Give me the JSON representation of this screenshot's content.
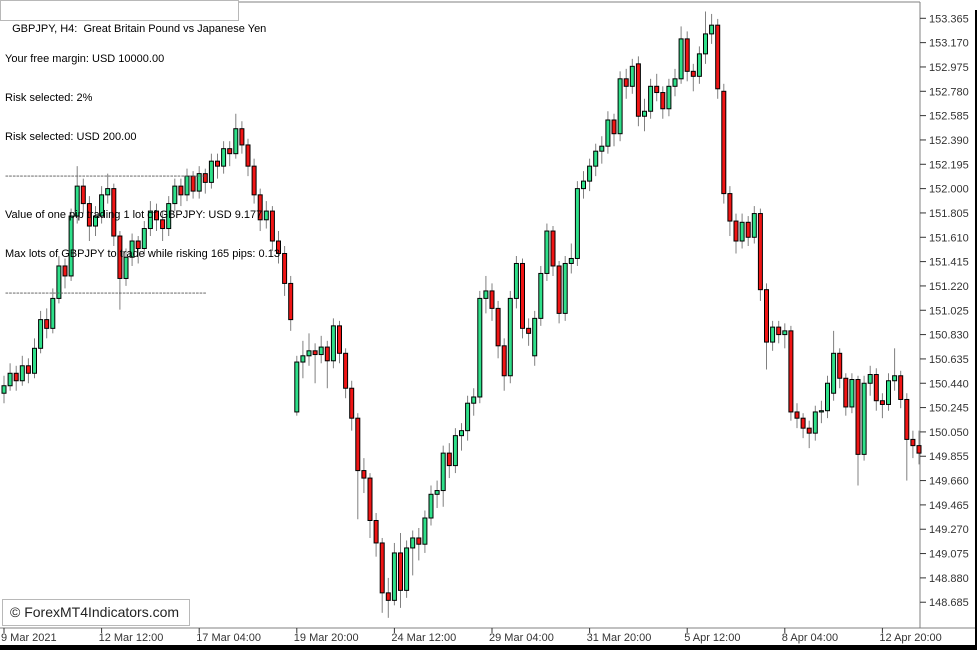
{
  "window": {
    "title_box": "GBPJPY, H4:  Great Britain Pound vs Japanese Yen",
    "watermark": "© ForexMT4Indicators.com"
  },
  "info_panel": {
    "lines": [
      "Your free margin: USD 10000.00",
      "Risk selected: 2%",
      "Risk selected: USD 200.00",
      "-------------------------------------------------------",
      "Value of one pip trading 1 lot of GBPJPY: USD 9.177",
      "Max lots of GBPJPY to trade while risking 165 pips: 0.13",
      "-------------------------------------------------------"
    ]
  },
  "chart_data": {
    "type": "candlestick",
    "symbol": "GBPJPY",
    "timeframe": "H4",
    "title": "GBPJPY, H4:  Great Britain Pound vs Japanese Yen",
    "grid": false,
    "legend_position": "none",
    "price_axis": {
      "side": "right",
      "max": 153.365,
      "min": 148.685,
      "step": 0.195,
      "labels": [
        "153.365",
        "153.170",
        "152.975",
        "152.780",
        "152.585",
        "152.390",
        "152.195",
        "152.000",
        "151.805",
        "151.610",
        "151.415",
        "151.220",
        "151.025",
        "150.830",
        "150.635",
        "150.440",
        "150.245",
        "150.050",
        "149.855",
        "149.660",
        "149.465",
        "149.270",
        "149.075",
        "148.880",
        "148.685"
      ]
    },
    "time_axis": {
      "labels": [
        {
          "bar": 0,
          "text": "9 Mar 2021"
        },
        {
          "bar": 16,
          "text": "12 Mar 12:00"
        },
        {
          "bar": 32,
          "text": "17 Mar 04:00"
        },
        {
          "bar": 48,
          "text": "19 Mar 20:00"
        },
        {
          "bar": 64,
          "text": "24 Mar 12:00"
        },
        {
          "bar": 80,
          "text": "29 Mar 04:00"
        },
        {
          "bar": 96,
          "text": "31 Mar 20:00"
        },
        {
          "bar": 112,
          "text": "5 Apr 12:00"
        },
        {
          "bar": 128,
          "text": "8 Apr 04:00"
        },
        {
          "bar": 144,
          "text": "12 Apr 20:00"
        }
      ]
    },
    "colors": {
      "background": "#FFFFFF",
      "bull": "#2FE08A",
      "bear": "#F01515",
      "outline": "#000000",
      "wick": "#808080",
      "axis": "#808080",
      "label_text": "#333333"
    },
    "candles": [
      [
        150.36,
        150.5,
        150.28,
        150.42
      ],
      [
        150.42,
        150.6,
        150.38,
        150.52
      ],
      [
        150.52,
        150.58,
        150.38,
        150.46
      ],
      [
        150.46,
        150.66,
        150.42,
        150.58
      ],
      [
        150.58,
        150.64,
        150.44,
        150.52
      ],
      [
        150.52,
        150.8,
        150.48,
        150.72
      ],
      [
        150.72,
        151.02,
        150.68,
        150.95
      ],
      [
        150.95,
        151.04,
        150.8,
        150.88
      ],
      [
        150.88,
        151.2,
        150.84,
        151.12
      ],
      [
        151.12,
        151.46,
        151.08,
        151.38
      ],
      [
        151.38,
        151.44,
        151.2,
        151.3
      ],
      [
        151.3,
        151.84,
        151.26,
        151.78
      ],
      [
        151.78,
        152.18,
        151.72,
        152.02
      ],
      [
        152.02,
        152.08,
        151.8,
        151.88
      ],
      [
        151.88,
        151.94,
        151.58,
        151.7
      ],
      [
        151.7,
        151.86,
        151.62,
        151.78
      ],
      [
        151.78,
        152.02,
        151.72,
        151.95
      ],
      [
        151.95,
        152.12,
        151.88,
        152.0
      ],
      [
        152.0,
        152.04,
        151.54,
        151.62
      ],
      [
        151.62,
        151.66,
        151.03,
        151.28
      ],
      [
        151.28,
        151.52,
        151.22,
        151.45
      ],
      [
        151.45,
        151.64,
        151.38,
        151.58
      ],
      [
        151.58,
        151.62,
        151.4,
        151.52
      ],
      [
        151.52,
        151.74,
        151.46,
        151.68
      ],
      [
        151.68,
        151.9,
        151.62,
        151.82
      ],
      [
        151.82,
        151.88,
        151.66,
        151.75
      ],
      [
        151.75,
        151.82,
        151.58,
        151.68
      ],
      [
        151.68,
        151.94,
        151.62,
        151.88
      ],
      [
        151.88,
        152.08,
        151.82,
        152.02
      ],
      [
        152.02,
        152.08,
        151.86,
        151.95
      ],
      [
        151.95,
        152.16,
        151.9,
        152.1
      ],
      [
        152.1,
        152.14,
        151.92,
        151.98
      ],
      [
        151.98,
        152.18,
        151.92,
        152.12
      ],
      [
        152.12,
        152.16,
        151.96,
        152.05
      ],
      [
        152.05,
        152.28,
        152.0,
        152.22
      ],
      [
        152.22,
        152.28,
        152.08,
        152.18
      ],
      [
        152.18,
        152.38,
        152.12,
        152.32
      ],
      [
        152.32,
        152.38,
        152.18,
        152.28
      ],
      [
        152.28,
        152.6,
        152.24,
        152.48
      ],
      [
        152.48,
        152.54,
        152.28,
        152.35
      ],
      [
        152.35,
        152.4,
        152.1,
        152.18
      ],
      [
        152.18,
        152.24,
        151.88,
        151.95
      ],
      [
        151.95,
        152.0,
        151.66,
        151.75
      ],
      [
        151.75,
        151.9,
        151.68,
        151.82
      ],
      [
        151.82,
        151.86,
        151.5,
        151.58
      ],
      [
        151.58,
        151.66,
        151.4,
        151.48
      ],
      [
        151.48,
        151.54,
        151.14,
        151.24
      ],
      [
        151.24,
        151.3,
        150.86,
        150.95
      ],
      [
        150.21,
        150.66,
        150.18,
        150.61
      ],
      [
        150.61,
        150.78,
        150.48,
        150.66
      ],
      [
        150.66,
        150.84,
        150.58,
        150.7
      ],
      [
        150.7,
        150.76,
        150.44,
        150.67
      ],
      [
        150.67,
        150.82,
        150.6,
        150.73
      ],
      [
        150.73,
        150.78,
        150.4,
        150.62
      ],
      [
        150.62,
        150.96,
        150.56,
        150.9
      ],
      [
        150.9,
        150.94,
        150.6,
        150.68
      ],
      [
        150.68,
        150.72,
        150.32,
        150.4
      ],
      [
        150.4,
        150.46,
        150.06,
        150.16
      ],
      [
        150.16,
        150.2,
        149.35,
        149.74
      ],
      [
        149.74,
        149.84,
        149.56,
        149.68
      ],
      [
        149.68,
        149.72,
        149.2,
        149.34
      ],
      [
        149.34,
        149.4,
        149.05,
        149.16
      ],
      [
        149.16,
        149.2,
        148.6,
        148.76
      ],
      [
        148.76,
        148.88,
        148.56,
        148.7
      ],
      [
        148.7,
        149.16,
        148.66,
        149.08
      ],
      [
        149.08,
        149.24,
        148.64,
        148.78
      ],
      [
        148.78,
        149.18,
        148.72,
        149.12
      ],
      [
        149.12,
        149.26,
        148.9,
        149.2
      ],
      [
        149.2,
        149.28,
        149.02,
        149.15
      ],
      [
        149.15,
        149.42,
        149.08,
        149.36
      ],
      [
        149.36,
        149.62,
        149.3,
        149.55
      ],
      [
        149.55,
        149.66,
        149.44,
        149.58
      ],
      [
        149.58,
        149.94,
        149.45,
        149.88
      ],
      [
        149.88,
        149.96,
        149.68,
        149.78
      ],
      [
        149.78,
        150.08,
        149.72,
        150.02
      ],
      [
        150.02,
        150.12,
        149.9,
        150.06
      ],
      [
        150.06,
        150.34,
        149.98,
        150.28
      ],
      [
        150.28,
        150.4,
        150.18,
        150.33
      ],
      [
        150.33,
        151.18,
        150.28,
        151.12
      ],
      [
        151.12,
        151.3,
        151.0,
        151.18
      ],
      [
        151.18,
        151.24,
        150.94,
        151.04
      ],
      [
        151.04,
        151.1,
        150.64,
        150.74
      ],
      [
        150.74,
        150.8,
        150.38,
        150.5
      ],
      [
        150.5,
        151.18,
        150.44,
        151.12
      ],
      [
        151.12,
        151.46,
        151.04,
        151.4
      ],
      [
        151.4,
        151.44,
        150.8,
        150.88
      ],
      [
        150.88,
        150.96,
        150.74,
        150.84
      ],
      [
        150.66,
        151.02,
        150.58,
        150.96
      ],
      [
        150.96,
        151.38,
        150.9,
        151.32
      ],
      [
        151.32,
        151.72,
        151.26,
        151.66
      ],
      [
        151.66,
        151.7,
        151.3,
        151.38
      ],
      [
        151.38,
        151.42,
        150.92,
        151.0
      ],
      [
        151.0,
        151.46,
        150.94,
        151.4
      ],
      [
        151.4,
        151.56,
        151.32,
        151.44
      ],
      [
        151.44,
        152.06,
        151.38,
        152.0
      ],
      [
        152.0,
        152.14,
        151.92,
        152.06
      ],
      [
        152.06,
        152.24,
        151.98,
        152.18
      ],
      [
        152.18,
        152.36,
        152.1,
        152.3
      ],
      [
        152.3,
        152.42,
        152.2,
        152.34
      ],
      [
        152.34,
        152.62,
        152.28,
        152.55
      ],
      [
        152.55,
        152.6,
        152.34,
        152.44
      ],
      [
        152.44,
        152.94,
        152.38,
        152.88
      ],
      [
        152.88,
        152.96,
        152.72,
        152.82
      ],
      [
        152.82,
        153.04,
        152.76,
        152.98
      ],
      [
        153.0,
        153.06,
        152.5,
        152.58
      ],
      [
        152.58,
        152.72,
        152.46,
        152.62
      ],
      [
        152.62,
        152.88,
        152.56,
        152.82
      ],
      [
        152.82,
        152.92,
        152.7,
        152.77
      ],
      [
        152.77,
        152.82,
        152.56,
        152.64
      ],
      [
        152.64,
        152.88,
        152.58,
        152.82
      ],
      [
        152.82,
        152.96,
        152.74,
        152.88
      ],
      [
        152.88,
        153.3,
        152.84,
        153.2
      ],
      [
        153.2,
        153.26,
        152.86,
        152.94
      ],
      [
        152.94,
        153.0,
        152.78,
        152.9
      ],
      [
        152.9,
        153.14,
        152.84,
        153.08
      ],
      [
        153.08,
        153.42,
        153.0,
        153.24
      ],
      [
        153.24,
        153.4,
        153.16,
        153.31
      ],
      [
        153.31,
        153.36,
        152.72,
        152.8
      ],
      [
        152.78,
        152.84,
        151.88,
        151.96
      ],
      [
        151.96,
        152.02,
        151.62,
        151.74
      ],
      [
        151.74,
        151.8,
        151.48,
        151.58
      ],
      [
        151.58,
        151.8,
        151.52,
        151.73
      ],
      [
        151.73,
        151.78,
        151.54,
        151.61
      ],
      [
        151.61,
        151.86,
        151.56,
        151.8
      ],
      [
        151.8,
        151.84,
        151.1,
        151.19
      ],
      [
        151.19,
        151.24,
        150.55,
        150.77
      ],
      [
        150.77,
        150.94,
        150.7,
        150.89
      ],
      [
        150.89,
        150.94,
        150.76,
        150.83
      ],
      [
        150.83,
        150.92,
        150.72,
        150.86
      ],
      [
        150.86,
        150.9,
        150.14,
        150.21
      ],
      [
        150.21,
        150.28,
        150.08,
        150.16
      ],
      [
        150.16,
        150.2,
        150.0,
        150.08
      ],
      [
        150.08,
        150.14,
        149.92,
        150.04
      ],
      [
        150.04,
        150.26,
        149.98,
        150.21
      ],
      [
        150.21,
        150.3,
        150.12,
        150.22
      ],
      [
        150.22,
        150.5,
        150.16,
        150.44
      ],
      [
        150.36,
        150.86,
        150.3,
        150.68
      ],
      [
        150.68,
        150.72,
        150.4,
        150.48
      ],
      [
        150.48,
        150.52,
        150.18,
        150.25
      ],
      [
        150.25,
        150.52,
        150.2,
        150.47
      ],
      [
        150.47,
        150.5,
        149.62,
        149.87
      ],
      [
        149.87,
        150.5,
        149.82,
        150.44
      ],
      [
        150.44,
        150.58,
        150.34,
        150.51
      ],
      [
        150.51,
        150.56,
        150.22,
        150.3
      ],
      [
        150.3,
        150.36,
        150.16,
        150.27
      ],
      [
        150.27,
        150.52,
        150.22,
        150.46
      ],
      [
        150.46,
        150.72,
        150.38,
        150.5
      ],
      [
        150.5,
        150.54,
        150.24,
        150.31
      ],
      [
        150.31,
        150.36,
        149.66,
        149.99
      ],
      [
        149.99,
        150.06,
        149.84,
        149.94
      ],
      [
        149.94,
        150.06,
        149.79,
        149.88
      ]
    ]
  }
}
